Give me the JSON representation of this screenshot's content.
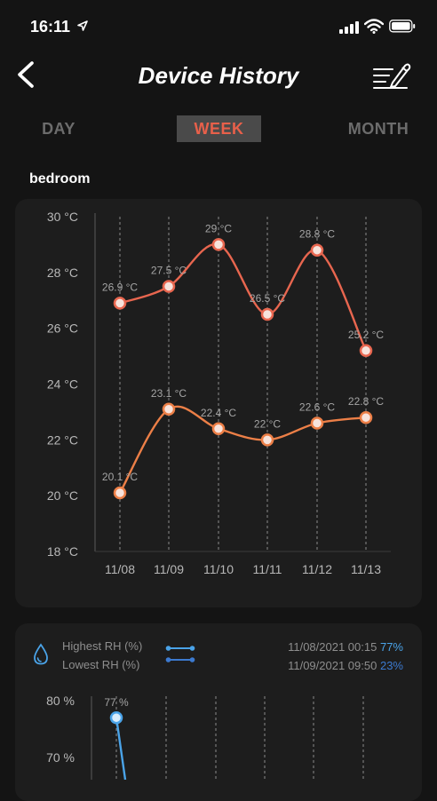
{
  "status_bar": {
    "time": "16:11"
  },
  "header": {
    "title": "Device History"
  },
  "tabs": [
    {
      "label": "DAY",
      "active": false
    },
    {
      "label": "WEEK",
      "active": true
    },
    {
      "label": "MONTH",
      "active": false
    }
  ],
  "room": "bedroom",
  "colors": {
    "accent": "#e8604a",
    "high_line": "#e8664f",
    "low_line": "#ec7f47",
    "rh_line": "#4aa3e8",
    "background": "#141414",
    "card": "#1d1d1d"
  },
  "chart_data": [
    {
      "type": "line",
      "y_unit": "°C",
      "categories": [
        "11/08",
        "11/09",
        "11/10",
        "11/11",
        "11/12",
        "11/13"
      ],
      "ylim": [
        18,
        30
      ],
      "y_ticks": [
        "30 °C",
        "28 °C",
        "26 °C",
        "24 °C",
        "22 °C",
        "20 °C",
        "18 °C"
      ],
      "y_tick_values": [
        30,
        28,
        26,
        24,
        22,
        20,
        18
      ],
      "grid": "vertical dashed",
      "series": [
        {
          "values": [
            26.9,
            27.5,
            29,
            26.5,
            28.8,
            25.2
          ],
          "labels": [
            "26.9 °C",
            "27.5 °C",
            "29 °C",
            "26.5 °C",
            "28.8 °C",
            "25.2 °C"
          ]
        },
        {
          "values": [
            20.1,
            23.1,
            22.4,
            22,
            22.6,
            22.8
          ],
          "labels": [
            "20.1 °C",
            "23.1 °C",
            "22.4 °C",
            "22 °C",
            "22.6 °C",
            "22.8 °C"
          ]
        }
      ]
    },
    {
      "type": "line",
      "y_unit": "%",
      "y_ticks": [
        "80 %",
        "70 %"
      ],
      "y_tick_values": [
        80,
        70
      ],
      "grid": "vertical dashed",
      "legend": {
        "highest_label": "Highest RH (%)",
        "lowest_label": "Lowest RH (%)",
        "highest_time": "11/08/2021 00:15",
        "highest_value": "77%",
        "lowest_time": "11/09/2021 09:50",
        "lowest_value": "23%"
      },
      "series": [
        {
          "values": [
            77
          ],
          "labels": [
            "77 %"
          ]
        }
      ]
    }
  ]
}
